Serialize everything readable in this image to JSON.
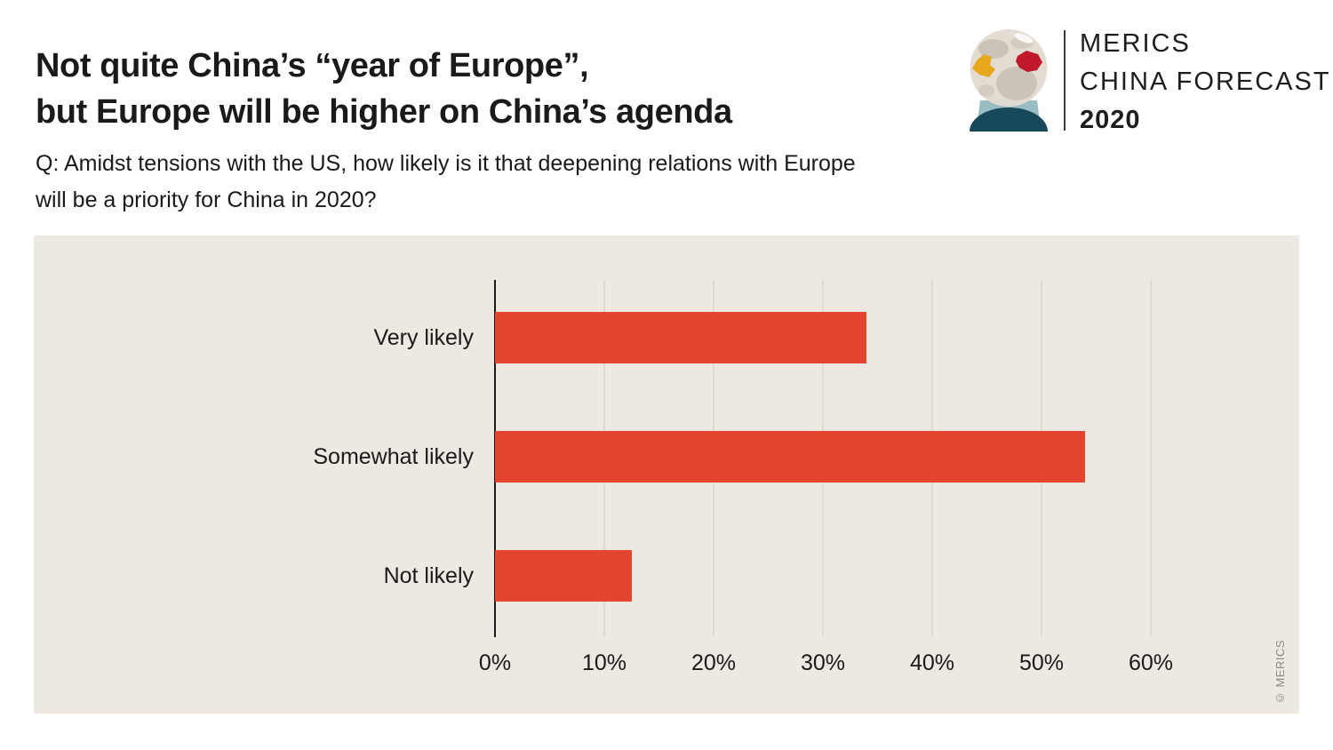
{
  "header": {
    "title_line1": "Not quite China’s “year of Europe”,",
    "title_line2": "but Europe will be higher on China’s agenda",
    "question_line1": "Q: Amidst tensions with the US, how likely is it that deepening relations with Europe",
    "question_line2": "will be a priority for China in 2020?"
  },
  "logo": {
    "org": "MERICS",
    "product": "CHINA FORECAST",
    "year": "2020",
    "icon": "crystal-ball-globe",
    "colors": {
      "globe": "#E2DBD2",
      "land": "#CCC3B8",
      "europe_gold": "#E8A81C",
      "china_red": "#C1182B",
      "base_light_teal": "#8FB5BC",
      "base_dark_teal": "#17495A"
    }
  },
  "chart_data": {
    "type": "bar",
    "orientation": "horizontal",
    "categories": [
      "Very likely",
      "Somewhat likely",
      "Not likely"
    ],
    "values": [
      34,
      54,
      12.5
    ],
    "unit": "%",
    "x_tick_values": [
      0,
      10,
      20,
      30,
      40,
      50,
      60
    ],
    "x_tick_labels": [
      "0%",
      "10%",
      "20%",
      "30%",
      "40%",
      "50%",
      "60%"
    ],
    "xlim": [
      0,
      65
    ],
    "grid": true,
    "legend": false,
    "bar_color": "#E4452E",
    "panel_background": "#EDE8E1",
    "gridline_color": "#DED9D1",
    "axis_color": "#1a1a18"
  },
  "footer": {
    "credit": "© MERICS"
  }
}
